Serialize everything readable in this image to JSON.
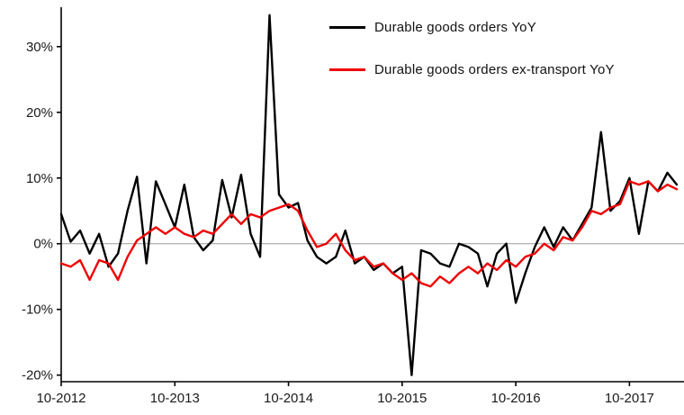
{
  "chart_data": {
    "type": "line",
    "title": "",
    "x_months": [
      "2012-10",
      "2012-11",
      "2012-12",
      "2013-01",
      "2013-02",
      "2013-03",
      "2013-04",
      "2013-05",
      "2013-06",
      "2013-07",
      "2013-08",
      "2013-09",
      "2013-10",
      "2013-11",
      "2013-12",
      "2014-01",
      "2014-02",
      "2014-03",
      "2014-04",
      "2014-05",
      "2014-06",
      "2014-07",
      "2014-08",
      "2014-09",
      "2014-10",
      "2014-11",
      "2014-12",
      "2015-01",
      "2015-02",
      "2015-03",
      "2015-04",
      "2015-05",
      "2015-06",
      "2015-07",
      "2015-08",
      "2015-09",
      "2015-10",
      "2015-11",
      "2015-12",
      "2016-01",
      "2016-02",
      "2016-03",
      "2016-04",
      "2016-05",
      "2016-06",
      "2016-07",
      "2016-08",
      "2016-09",
      "2016-10",
      "2016-11",
      "2016-12",
      "2017-01",
      "2017-02",
      "2017-03",
      "2017-04",
      "2017-05",
      "2017-06",
      "2017-07",
      "2017-08",
      "2017-09",
      "2017-10",
      "2017-11",
      "2017-12",
      "2018-01",
      "2018-02",
      "2018-03"
    ],
    "x_tick_labels": [
      "10-2012",
      "10-2013",
      "10-2014",
      "10-2015",
      "10-2016",
      "10-2017"
    ],
    "x_tick_month_indices": [
      0,
      12,
      24,
      36,
      48,
      60
    ],
    "y_ticks": [
      -20,
      -10,
      0,
      10,
      20,
      30
    ],
    "y_tick_suffix": "%",
    "ylim": [
      -21,
      36
    ],
    "grid": "zero-line-only",
    "legend_position": "top-center-inside",
    "series": [
      {
        "name": "Durable goods orders YoY",
        "color": "#000000",
        "values": [
          4.5,
          0.3,
          2.0,
          -1.5,
          1.5,
          -3.5,
          -1.5,
          5.0,
          10.2,
          -3.0,
          9.5,
          6.0,
          2.5,
          9.0,
          1.0,
          -1.0,
          0.5,
          9.7,
          4.0,
          10.5,
          1.5,
          -2.0,
          34.8,
          7.5,
          5.5,
          6.2,
          0.5,
          -2.0,
          -3.0,
          -2.0,
          2.0,
          -3.0,
          -2.0,
          -4.0,
          -3.0,
          -4.5,
          -3.5,
          -20.0,
          -1.0,
          -1.5,
          -3.0,
          -3.5,
          0.0,
          -0.5,
          -1.5,
          -6.5,
          -1.5,
          0.0,
          -9.0,
          -4.5,
          -0.5,
          2.5,
          -0.5,
          2.5,
          0.5,
          3.0,
          5.5,
          17.0,
          5.0,
          6.5,
          10.0,
          1.5,
          9.5,
          8.0,
          10.8,
          9.0
        ]
      },
      {
        "name": "Durable goods orders ex-transport YoY",
        "color": "#ee0000",
        "values": [
          -3.0,
          -3.5,
          -2.5,
          -5.5,
          -2.5,
          -3.0,
          -5.5,
          -2.0,
          0.5,
          1.5,
          2.5,
          1.5,
          2.5,
          1.5,
          1.0,
          2.0,
          1.5,
          3.0,
          4.5,
          3.0,
          4.5,
          4.0,
          5.0,
          5.5,
          6.0,
          5.0,
          2.0,
          -0.5,
          0.0,
          1.5,
          -1.0,
          -2.5,
          -2.0,
          -3.5,
          -3.0,
          -4.5,
          -5.5,
          -4.5,
          -6.0,
          -6.5,
          -5.0,
          -6.0,
          -4.5,
          -3.5,
          -4.5,
          -3.0,
          -4.0,
          -2.5,
          -3.5,
          -2.0,
          -1.5,
          0.0,
          -1.0,
          1.0,
          0.5,
          2.5,
          5.0,
          4.5,
          5.5,
          6.0,
          9.5,
          9.0,
          9.5,
          8.0,
          9.0,
          8.3
        ]
      }
    ]
  },
  "legend": {
    "items": [
      {
        "label": "Durable goods orders YoY",
        "color": "#000000"
      },
      {
        "label": "Durable goods orders ex-transport YoY",
        "color": "#ee0000"
      }
    ]
  }
}
